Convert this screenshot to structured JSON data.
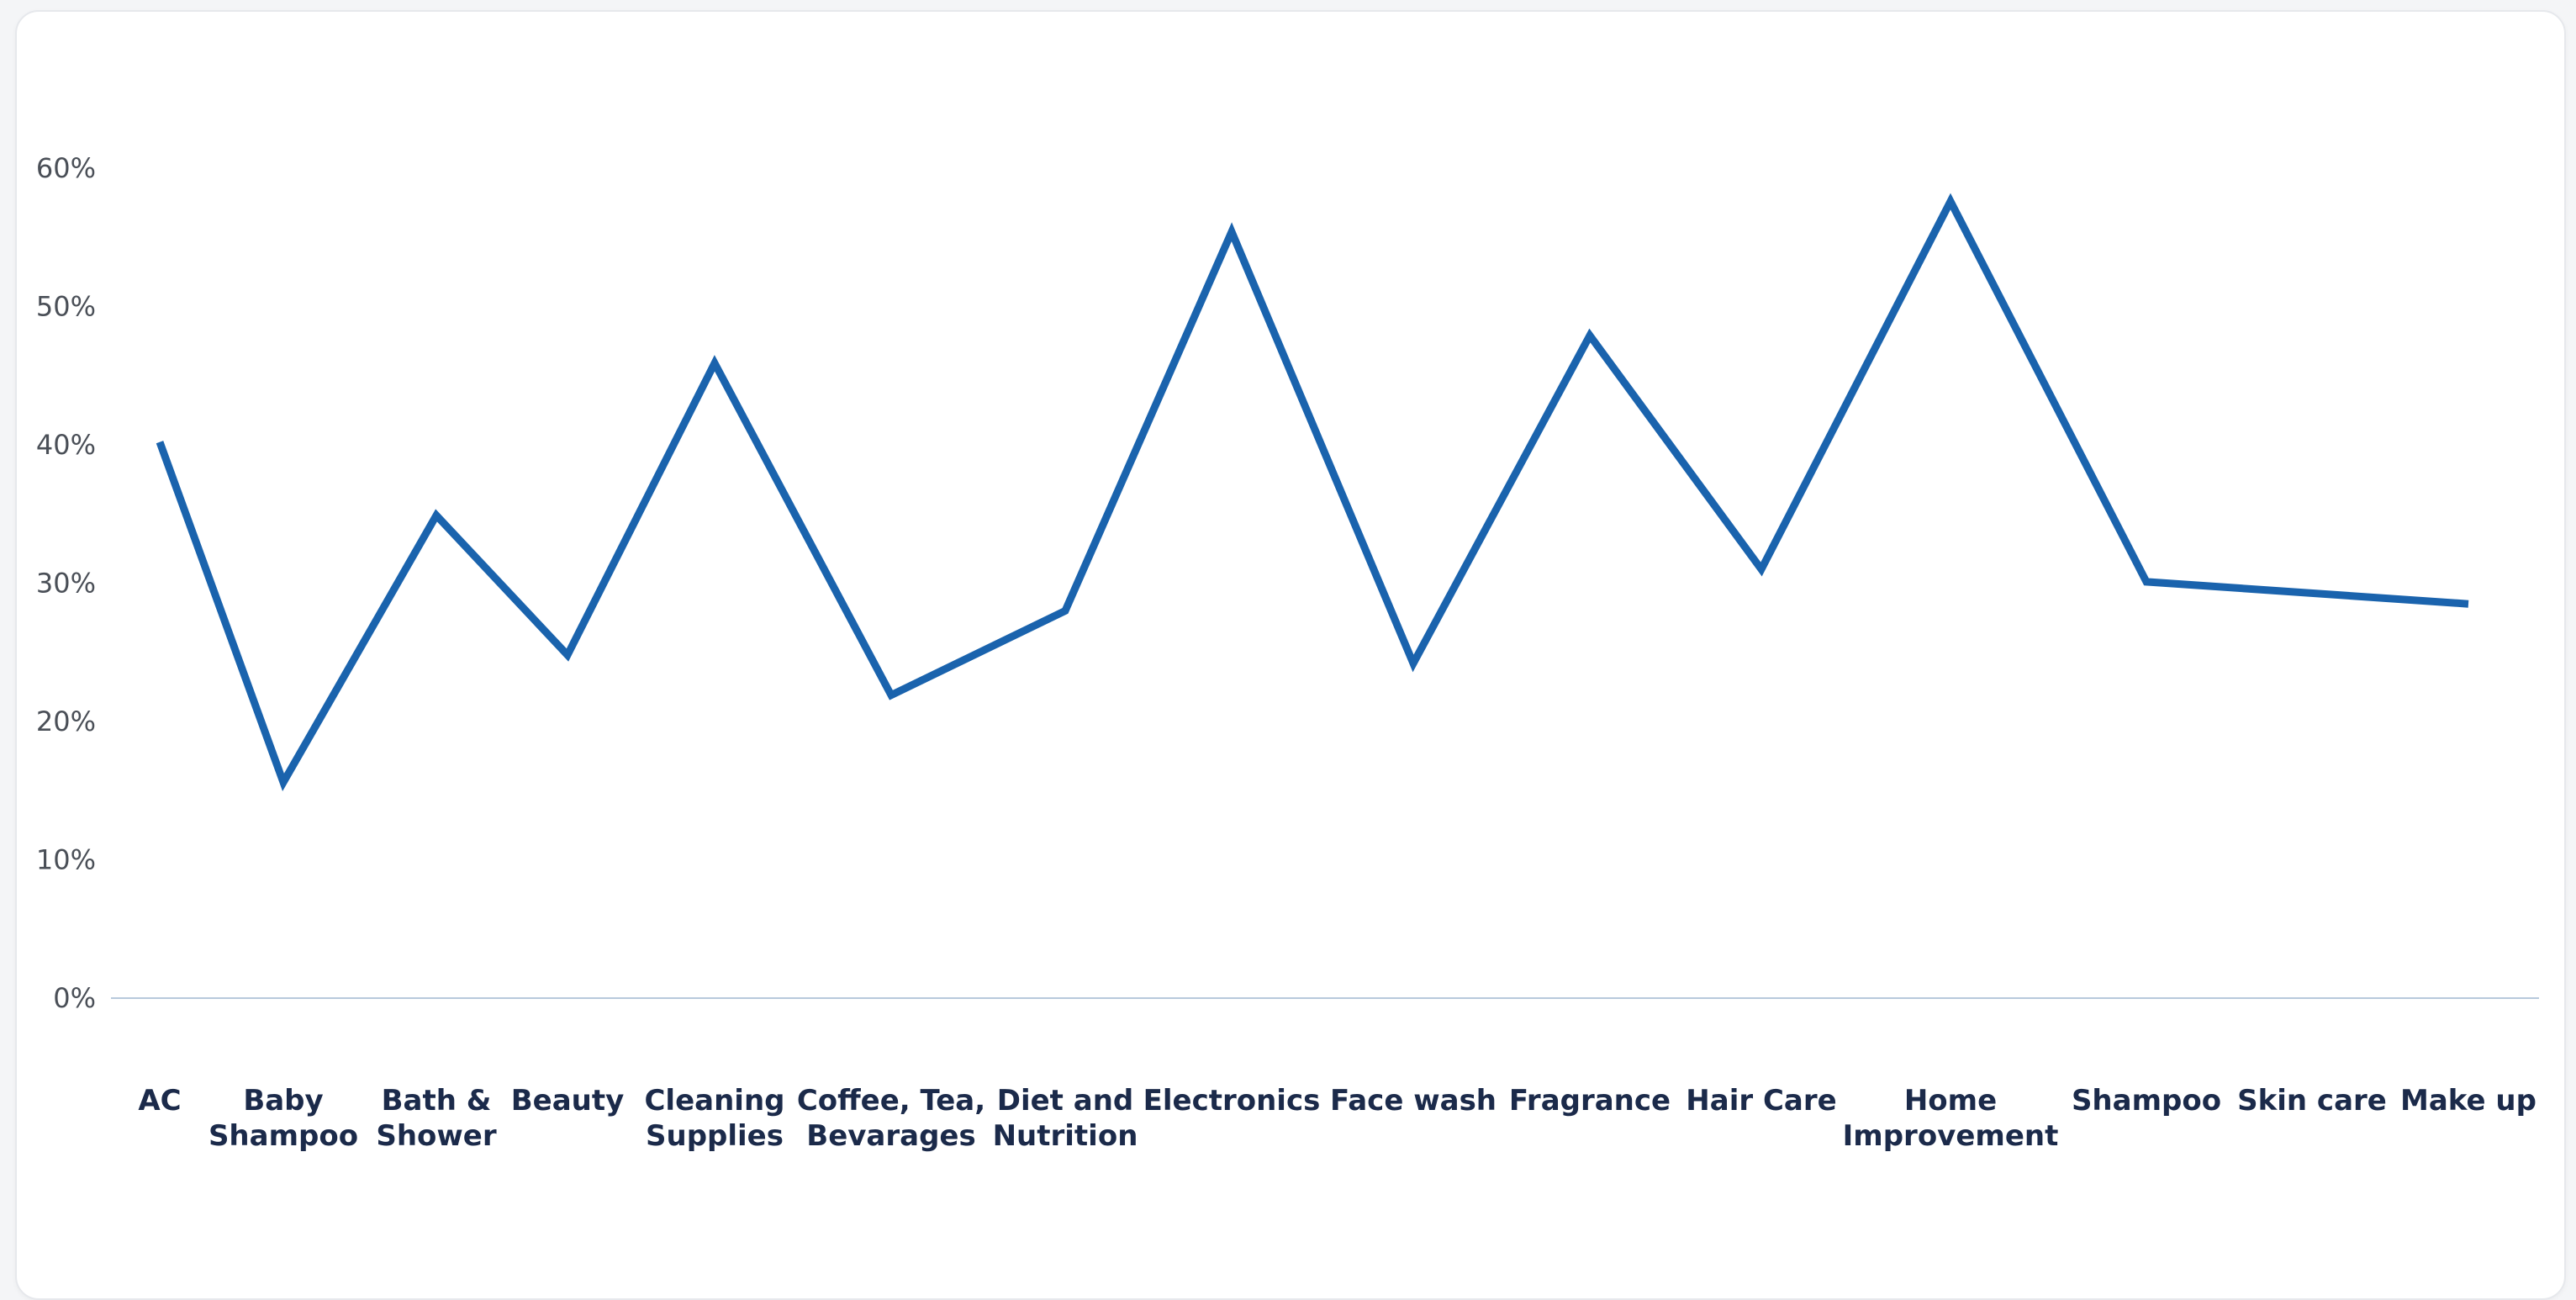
{
  "chart_data": {
    "type": "line",
    "categories": [
      "AC",
      "Baby Shampoo",
      "Bath & Shower",
      "Beauty",
      "Cleaning Supplies",
      "Coffee, Tea, Bevarages",
      "Diet and Nutrition",
      "Electronics",
      "Face wash",
      "Fragrance",
      "Hair Care",
      "Home Improvement",
      "Shampoo",
      "Skin care",
      "Make up"
    ],
    "category_lines": [
      [
        "AC"
      ],
      [
        "Baby",
        "Shampoo"
      ],
      [
        "Bath &",
        "Shower"
      ],
      [
        "Beauty"
      ],
      [
        "Cleaning",
        "Supplies"
      ],
      [
        "Coffee, Tea,",
        "Bevarages"
      ],
      [
        "Diet and",
        "Nutrition"
      ],
      [
        "Electronics"
      ],
      [
        "Face wash"
      ],
      [
        "Fragrance"
      ],
      [
        "Hair Care"
      ],
      [
        "Home",
        "Improvement"
      ],
      [
        "Shampoo"
      ],
      [
        "Skin care"
      ],
      [
        "Make up"
      ]
    ],
    "series": [
      {
        "values": [
          40.2,
          15.6,
          34.9,
          24.8,
          45.9,
          21.9,
          28.0,
          55.4,
          24.2,
          47.9,
          31.0,
          57.6,
          30.1,
          null,
          28.5
        ]
      }
    ],
    "y_ticks": [
      "0%",
      "10%",
      "20%",
      "30%",
      "40%",
      "50%",
      "60%"
    ],
    "ylim": [
      0,
      60
    ],
    "grid": false,
    "colors": {
      "line": "#1a63ad",
      "baseline": "#b8c9dc"
    }
  }
}
